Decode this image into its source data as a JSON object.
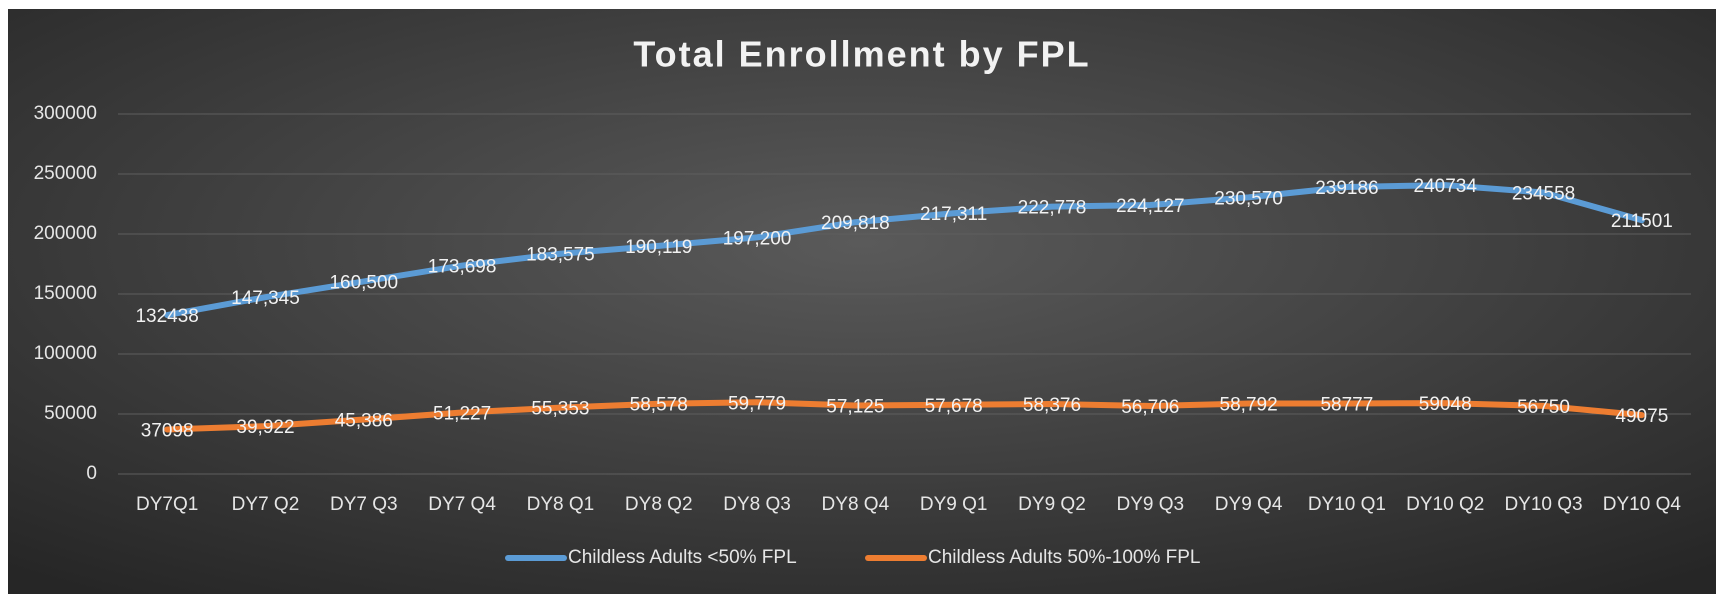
{
  "chart_data": {
    "type": "line",
    "title": "Total Enrollment by FPL",
    "categories": [
      "DY7Q1",
      "DY7 Q2",
      "DY7 Q3",
      "DY7 Q4",
      "DY8 Q1",
      "DY8 Q2",
      "DY8 Q3",
      "DY8 Q4",
      "DY9 Q1",
      "DY9 Q2",
      "DY9 Q3",
      "DY9 Q4",
      "DY10 Q1",
      "DY10 Q2",
      "DY10 Q3",
      "DY10 Q4"
    ],
    "series": [
      {
        "name": "Childless Adults <50% FPL",
        "color": "#5b9bd5",
        "values": [
          132438,
          147345,
          160500,
          173698,
          183575,
          190119,
          197200,
          209818,
          217311,
          222778,
          224127,
          230570,
          239186,
          240734,
          234558,
          211501
        ],
        "value_labels": [
          "132438",
          "147,345",
          "160,500",
          "173,698",
          "183,575",
          "190,119",
          "197,200",
          "209,818",
          "217,311",
          "222,778",
          "224,127",
          "230,570",
          "239186",
          "240734",
          "234558",
          "211501"
        ]
      },
      {
        "name": "Childless Adults 50%-100% FPL",
        "color": "#ed7d31",
        "values": [
          37098,
          39922,
          45386,
          51227,
          55353,
          58578,
          59779,
          57125,
          57678,
          58376,
          56706,
          58792,
          58777,
          59048,
          56750,
          49075
        ],
        "value_labels": [
          "37098",
          "39,922",
          "45,386",
          "51,227",
          "55,353",
          "58,578",
          "59,779",
          "57,125",
          "57,678",
          "58,376",
          "56,706",
          "58,792",
          "58777",
          "59048",
          "56750",
          "49075"
        ]
      }
    ],
    "ylim": [
      0,
      300000
    ],
    "yticks": [
      0,
      50000,
      100000,
      150000,
      200000,
      250000,
      300000
    ],
    "grid": true,
    "legend": "bottom"
  }
}
